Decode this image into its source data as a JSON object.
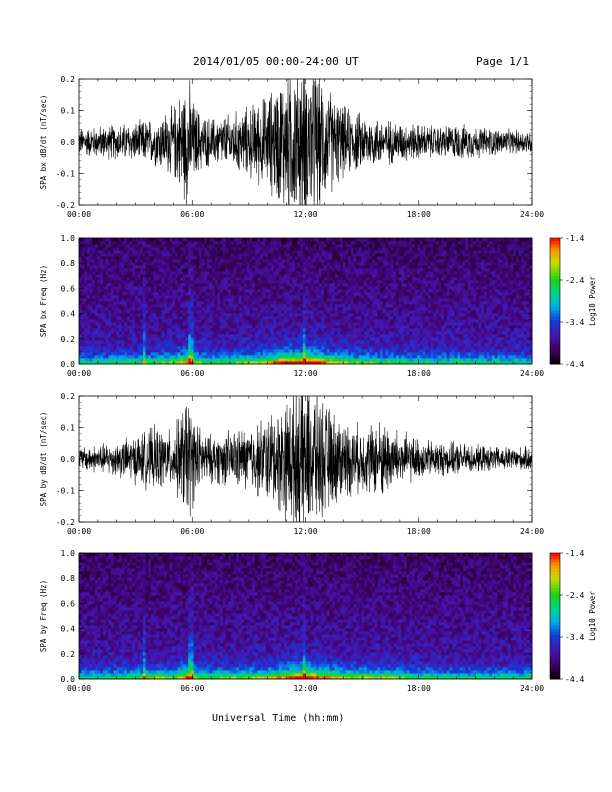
{
  "header": {
    "title": "2014/01/05  00:00-24:00 UT",
    "page": "Page 1/1"
  },
  "x_axis": {
    "title": "Universal Time (hh:mm)",
    "ticks": [
      "00:00",
      "06:00",
      "12:00",
      "18:00",
      "24:00"
    ]
  },
  "chart_data": [
    {
      "type": "line",
      "ylabel": "SPA bx dB/dt (nT/sec)",
      "xlim": [
        0,
        24
      ],
      "ylim": [
        -0.2,
        0.2
      ],
      "yticks": [
        "0.2",
        "0.1",
        "0.0",
        "-0.1",
        "-0.2"
      ],
      "series": [
        {
          "x": [
            0,
            1,
            2,
            3,
            4,
            5,
            5.8,
            6,
            6.5,
            7,
            8,
            9,
            10,
            11,
            11.5,
            12,
            12.5,
            13,
            14,
            15,
            16,
            17,
            18,
            19,
            20,
            21,
            22,
            23,
            24
          ],
          "amplitude": [
            0.035,
            0.04,
            0.045,
            0.05,
            0.06,
            0.09,
            0.17,
            0.11,
            0.07,
            0.06,
            0.07,
            0.09,
            0.12,
            0.19,
            0.2,
            0.2,
            0.2,
            0.15,
            0.09,
            0.07,
            0.06,
            0.05,
            0.045,
            0.04,
            0.045,
            0.04,
            0.035,
            0.03,
            0.03
          ]
        }
      ]
    },
    {
      "type": "heatmap",
      "ylabel": "SPA bx Freq (Hz)",
      "xlim": [
        0,
        24
      ],
      "ylim": [
        0,
        1.0
      ],
      "yticks": [
        "1.0",
        "0.8",
        "0.6",
        "0.4",
        "0.2",
        "0.0"
      ],
      "colorbar": {
        "label": "Log10 Power",
        "ticks": [
          "-1.4",
          "-2.4",
          "-3.4",
          "-4.4"
        ],
        "range": [
          -4.4,
          -1.4
        ]
      }
    },
    {
      "type": "line",
      "ylabel": "SPA by dB/dt (nT/sec)",
      "xlim": [
        0,
        24
      ],
      "ylim": [
        -0.2,
        0.2
      ],
      "yticks": [
        "0.2",
        "0.1",
        "0.0",
        "-0.1",
        "-0.2"
      ],
      "series": [
        {
          "x": [
            0,
            1,
            2,
            3,
            4,
            5,
            5.8,
            6,
            6.5,
            7,
            8,
            9,
            10,
            11,
            11.5,
            12,
            12.5,
            13,
            14,
            15,
            16,
            17,
            18,
            19,
            20,
            21,
            22,
            23,
            24
          ],
          "amplitude": [
            0.03,
            0.035,
            0.045,
            0.06,
            0.08,
            0.07,
            0.17,
            0.12,
            0.07,
            0.06,
            0.07,
            0.08,
            0.11,
            0.15,
            0.2,
            0.2,
            0.18,
            0.14,
            0.1,
            0.08,
            0.1,
            0.07,
            0.05,
            0.045,
            0.04,
            0.035,
            0.03,
            0.03,
            0.03
          ]
        }
      ]
    },
    {
      "type": "heatmap",
      "ylabel": "SPA by Freq (Hz)",
      "xlim": [
        0,
        24
      ],
      "ylim": [
        0,
        1.0
      ],
      "yticks": [
        "1.0",
        "0.8",
        "0.6",
        "0.4",
        "0.2",
        "0.0"
      ],
      "colorbar": {
        "label": "Log10 Power",
        "ticks": [
          "-1.4",
          "-2.4",
          "-3.4",
          "-4.4"
        ],
        "range": [
          -4.4,
          -1.4
        ]
      }
    }
  ]
}
